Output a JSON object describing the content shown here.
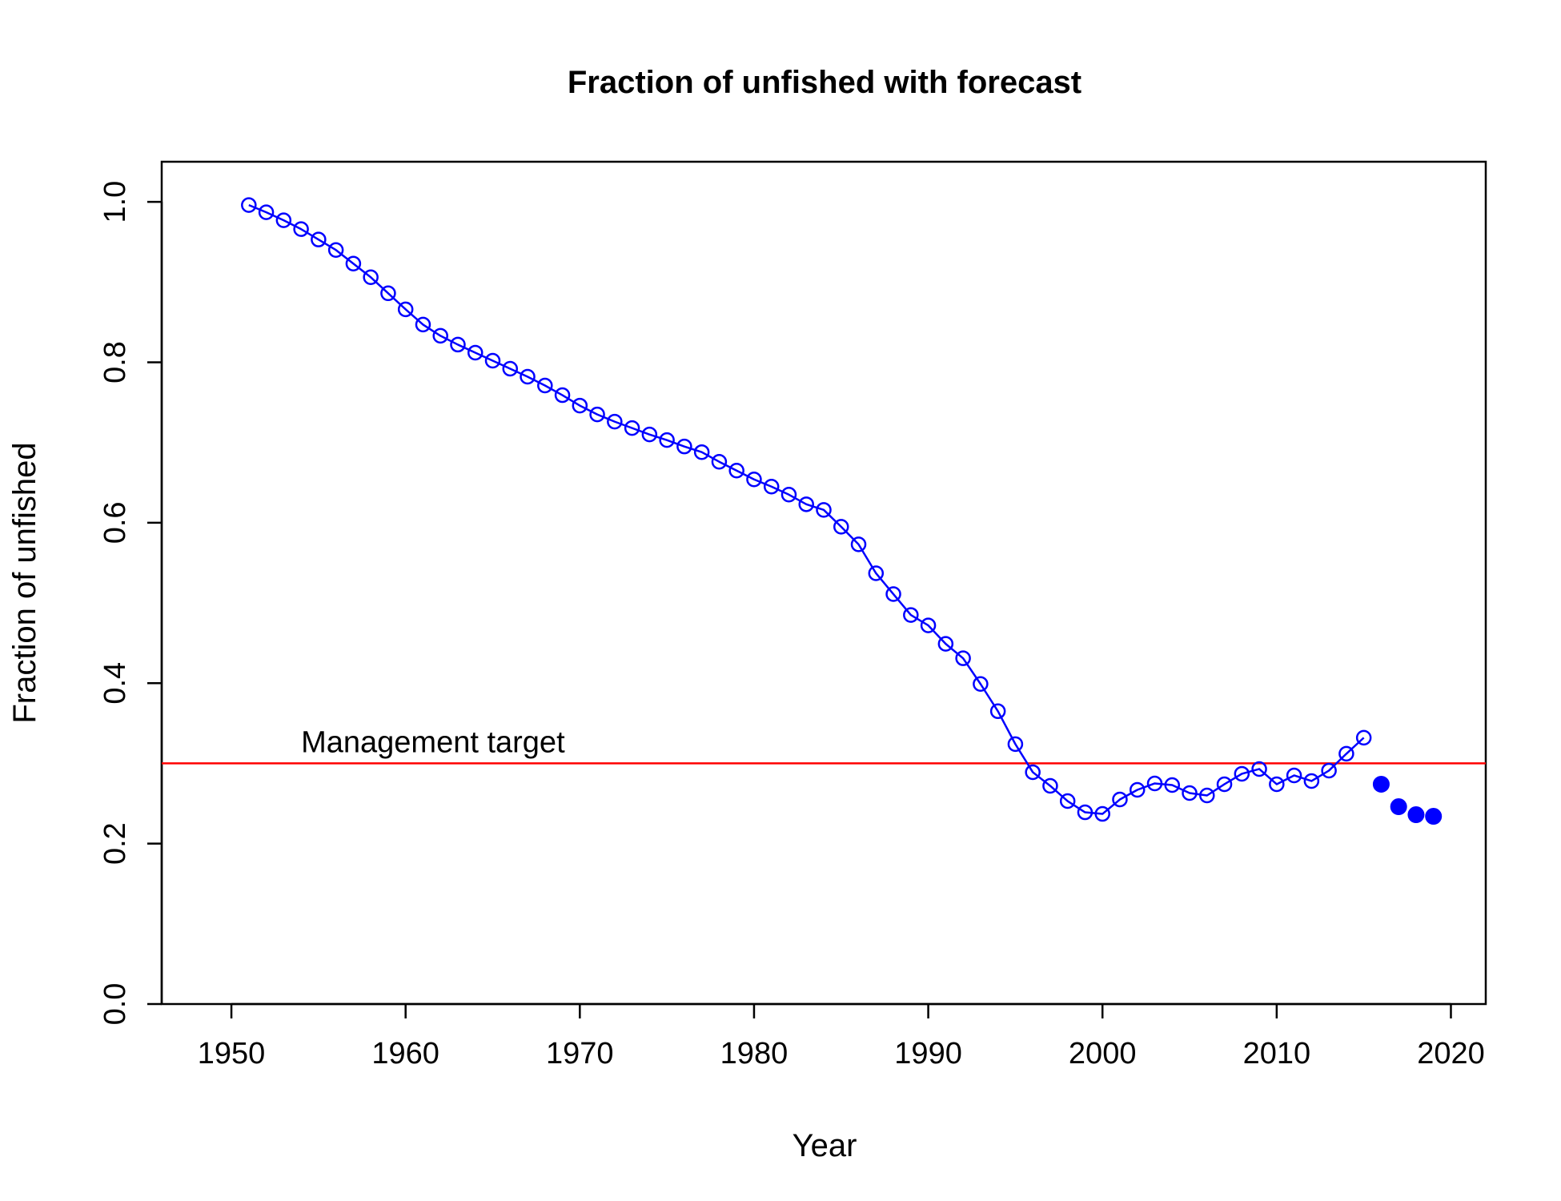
{
  "chart_data": {
    "type": "line",
    "title": "Fraction of unfished with forecast",
    "xlabel": "Year",
    "ylabel": "Fraction of unfished",
    "xlim": [
      1946,
      2022
    ],
    "ylim": [
      0,
      1.05
    ],
    "xticks": [
      1950,
      1960,
      1970,
      1980,
      1990,
      2000,
      2010,
      2020
    ],
    "yticks": [
      "0.0",
      "0.2",
      "0.4",
      "0.6",
      "0.8",
      "1.0"
    ],
    "grid": false,
    "colors": {
      "series": "#0000ff",
      "target": "#ff0000",
      "axis": "#000000"
    },
    "series": [
      {
        "marker": "open-circle",
        "line": true,
        "x": [
          1951,
          1952,
          1953,
          1954,
          1955,
          1956,
          1957,
          1958,
          1959,
          1960,
          1961,
          1962,
          1963,
          1964,
          1965,
          1966,
          1967,
          1968,
          1969,
          1970,
          1971,
          1972,
          1973,
          1974,
          1975,
          1976,
          1977,
          1978,
          1979,
          1980,
          1981,
          1982,
          1983,
          1984,
          1985,
          1986,
          1987,
          1988,
          1989,
          1990,
          1991,
          1992,
          1993,
          1994,
          1995,
          1996,
          1997,
          1998,
          1999,
          2000,
          2001,
          2002,
          2003,
          2004,
          2005,
          2006,
          2007,
          2008,
          2009,
          2010,
          2011,
          2012,
          2013,
          2014,
          2015
        ],
        "y": [
          0.996,
          0.987,
          0.977,
          0.966,
          0.953,
          0.94,
          0.923,
          0.906,
          0.886,
          0.866,
          0.847,
          0.833,
          0.822,
          0.812,
          0.802,
          0.792,
          0.782,
          0.771,
          0.759,
          0.746,
          0.735,
          0.726,
          0.718,
          0.71,
          0.703,
          0.695,
          0.688,
          0.676,
          0.665,
          0.654,
          0.645,
          0.635,
          0.623,
          0.616,
          0.595,
          0.573,
          0.537,
          0.511,
          0.485,
          0.472,
          0.449,
          0.431,
          0.399,
          0.365,
          0.324,
          0.289,
          0.272,
          0.253,
          0.239,
          0.237,
          0.255,
          0.267,
          0.275,
          0.273,
          0.263,
          0.26,
          0.274,
          0.287,
          0.293,
          0.274,
          0.285,
          0.278,
          0.291,
          0.312,
          0.332
        ]
      },
      {
        "marker": "filled-circle",
        "line": false,
        "x": [
          2016,
          2017,
          2018,
          2019
        ],
        "y": [
          0.274,
          0.246,
          0.236,
          0.234
        ]
      }
    ],
    "hline": {
      "y": 0.3,
      "label": "Management target"
    }
  }
}
